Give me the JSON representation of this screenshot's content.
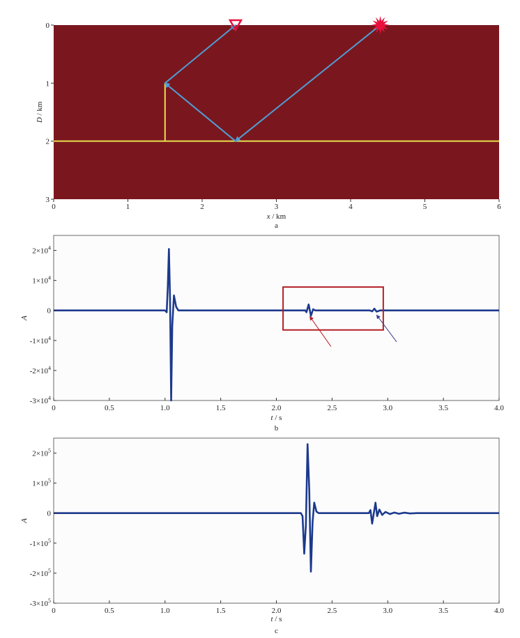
{
  "chart_data": [
    {
      "type": "diagram",
      "panel_label": "a",
      "xlabel": "x / km",
      "ylabel": "D / km",
      "xlim": [
        0,
        6
      ],
      "ylim": [
        0,
        3
      ],
      "y_inverted": true,
      "xticks": [
        "0",
        "1",
        "2",
        "3",
        "4",
        "5",
        "6"
      ],
      "yticks": [
        "0",
        "1",
        "2",
        "3"
      ],
      "background_color": "#7a171e",
      "reflector": {
        "depth": 2,
        "color": "#e8e04e"
      },
      "vertical_segment": {
        "x": 1.5,
        "from_depth": 1,
        "to_depth": 2,
        "color": "#e8e04e"
      },
      "source": {
        "x": 4.4,
        "depth": 0,
        "color": "#e8103c",
        "icon": "star-burst"
      },
      "receiver": {
        "x": 2.45,
        "depth": 0,
        "color": "#e8103c",
        "icon": "triangle-down"
      },
      "ray_color": "#4f9fd6",
      "ray_path": [
        {
          "x": 4.4,
          "depth": 0
        },
        {
          "x": 2.45,
          "depth": 2
        },
        {
          "x": 1.5,
          "depth": 1
        },
        {
          "x": 2.45,
          "depth": 0
        }
      ]
    },
    {
      "type": "line",
      "panel_label": "b",
      "xlabel": "t / s",
      "ylabel": "A",
      "xlim": [
        0,
        4
      ],
      "ylim": [
        -30000,
        25000
      ],
      "xticks": [
        "0",
        "0.5",
        "1.0",
        "1.5",
        "2.0",
        "2.5",
        "3.0",
        "3.5",
        "4.0"
      ],
      "yticks": [
        {
          "value": 20000,
          "mantissa": "2×10",
          "exp": "4"
        },
        {
          "value": 10000,
          "mantissa": "1×10",
          "exp": "4"
        },
        {
          "value": 0,
          "mantissa": "0",
          "exp": ""
        },
        {
          "value": -10000,
          "mantissa": "-1×10",
          "exp": "4"
        },
        {
          "value": -20000,
          "mantissa": "-2×10",
          "exp": "4"
        },
        {
          "value": -30000,
          "mantissa": "-3×10",
          "exp": "4"
        }
      ],
      "line_color": "#1c3a8c",
      "wavelets": [
        {
          "t": 1.0,
          "a": 0
        },
        {
          "t": 1.015,
          "a": -600
        },
        {
          "t": 1.025,
          "a": 8000
        },
        {
          "t": 1.035,
          "a": 20500
        },
        {
          "t": 1.045,
          "a": 4000
        },
        {
          "t": 1.055,
          "a": -30000
        },
        {
          "t": 1.065,
          "a": -5000
        },
        {
          "t": 1.08,
          "a": 5000
        },
        {
          "t": 1.1,
          "a": 1200
        },
        {
          "t": 1.12,
          "a": 0
        },
        {
          "t": 2.26,
          "a": 0
        },
        {
          "t": 2.27,
          "a": -600
        },
        {
          "t": 2.29,
          "a": 2000
        },
        {
          "t": 2.31,
          "a": -1800
        },
        {
          "t": 2.33,
          "a": 400
        },
        {
          "t": 2.35,
          "a": 0
        },
        {
          "t": 2.84,
          "a": 0
        },
        {
          "t": 2.86,
          "a": -300
        },
        {
          "t": 2.88,
          "a": 600
        },
        {
          "t": 2.9,
          "a": -400
        },
        {
          "t": 2.93,
          "a": 0
        }
      ],
      "highlight_box": {
        "t_range": [
          2.06,
          2.96
        ],
        "a_range": [
          -6500,
          7800
        ],
        "color": "#b31f24"
      },
      "arrows": [
        {
          "from": [
            2.49,
            -12000
          ],
          "to": [
            2.3,
            -2000
          ],
          "color": "#b31f24"
        },
        {
          "from": [
            3.08,
            -10500
          ],
          "to": [
            2.9,
            -1500
          ],
          "color": "#3e3f8f"
        }
      ]
    },
    {
      "type": "line",
      "panel_label": "c",
      "xlabel": "t / s",
      "ylabel": "A",
      "xlim": [
        0,
        4
      ],
      "ylim": [
        -30,
        25
      ],
      "y_unit_note": "values in units of 1e-5",
      "xticks": [
        "0",
        "0.5",
        "1.0",
        "1.5",
        "2.0",
        "2.5",
        "3.0",
        "3.5",
        "4.0"
      ],
      "yticks": [
        {
          "value": 20,
          "mantissa": "2×10",
          "exp": "5"
        },
        {
          "value": 10,
          "mantissa": "1×10",
          "exp": "5"
        },
        {
          "value": 0,
          "mantissa": "0",
          "exp": ""
        },
        {
          "value": -10,
          "mantissa": "-1×10",
          "exp": "5"
        },
        {
          "value": -20,
          "mantissa": "-2×10",
          "exp": "5"
        },
        {
          "value": -30,
          "mantissa": "-3×10",
          "exp": "5"
        }
      ],
      "line_color": "#1c3a8c",
      "wavelets": [
        {
          "t": 2.22,
          "a": 0
        },
        {
          "t": 2.235,
          "a": -1
        },
        {
          "t": 2.25,
          "a": -13.5
        },
        {
          "t": 2.265,
          "a": -4
        },
        {
          "t": 2.28,
          "a": 23
        },
        {
          "t": 2.295,
          "a": 8
        },
        {
          "t": 2.31,
          "a": -19.5
        },
        {
          "t": 2.325,
          "a": -3
        },
        {
          "t": 2.34,
          "a": 3.5
        },
        {
          "t": 2.36,
          "a": 0.5
        },
        {
          "t": 2.38,
          "a": 0
        },
        {
          "t": 2.83,
          "a": 0
        },
        {
          "t": 2.845,
          "a": 1
        },
        {
          "t": 2.86,
          "a": -3.5
        },
        {
          "t": 2.875,
          "a": 0
        },
        {
          "t": 2.89,
          "a": 3.5
        },
        {
          "t": 2.905,
          "a": -1
        },
        {
          "t": 2.925,
          "a": 1.2
        },
        {
          "t": 2.95,
          "a": -0.6
        },
        {
          "t": 2.98,
          "a": 0.4
        },
        {
          "t": 3.02,
          "a": -0.3
        },
        {
          "t": 3.06,
          "a": 0.2
        },
        {
          "t": 3.1,
          "a": -0.2
        },
        {
          "t": 3.15,
          "a": 0.15
        },
        {
          "t": 3.2,
          "a": -0.1
        },
        {
          "t": 3.26,
          "a": 0
        }
      ]
    }
  ]
}
